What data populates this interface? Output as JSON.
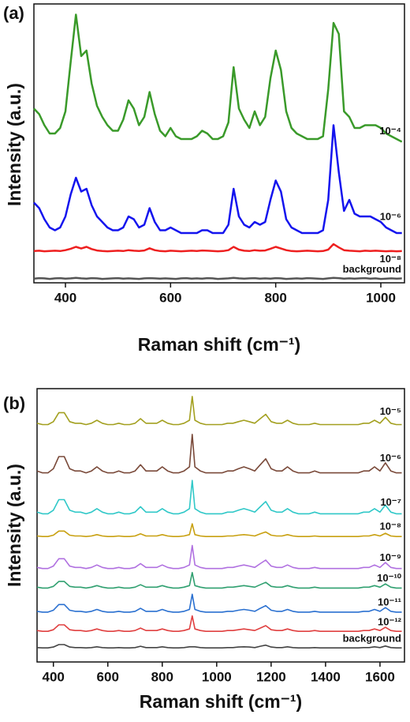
{
  "chart_data": [
    {
      "type": "line",
      "panel_label": "(a)",
      "xlabel": "Raman shift (cm⁻¹)",
      "ylabel": "Intensity (a.u.)",
      "xlim": [
        340,
        1045
      ],
      "xticks": [
        400,
        600,
        800,
        1000
      ],
      "ylim": [
        0,
        100
      ],
      "x": [
        340,
        350,
        360,
        370,
        380,
        390,
        400,
        410,
        420,
        430,
        440,
        450,
        460,
        470,
        480,
        490,
        500,
        510,
        520,
        530,
        540,
        550,
        560,
        570,
        580,
        590,
        600,
        610,
        620,
        630,
        640,
        650,
        660,
        670,
        680,
        690,
        700,
        710,
        720,
        730,
        740,
        750,
        760,
        770,
        780,
        790,
        800,
        810,
        820,
        830,
        840,
        850,
        860,
        870,
        880,
        890,
        900,
        910,
        920,
        930,
        940,
        950,
        960,
        970,
        980,
        990,
        1000,
        1010,
        1020,
        1030,
        1040
      ],
      "series": [
        {
          "name": "10⁻⁴",
          "color": "#3a9a2a",
          "values": [
            63,
            61,
            57,
            54,
            54,
            56,
            62,
            80,
            97,
            82,
            84,
            72,
            64,
            60,
            57,
            55,
            55,
            59,
            66,
            63,
            57,
            60,
            69,
            61,
            55,
            53,
            56,
            53,
            52,
            52,
            52,
            53,
            55,
            54,
            52,
            52,
            53,
            58,
            78,
            63,
            59,
            56,
            62,
            57,
            60,
            74,
            84,
            77,
            62,
            56,
            54,
            53,
            52,
            52,
            52,
            53,
            70,
            94,
            90,
            62,
            60,
            56,
            56,
            57,
            57,
            57,
            56,
            54,
            53,
            52,
            51
          ]
        },
        {
          "name": "10⁻⁶",
          "color": "#1414ee",
          "values": [
            29,
            27,
            23,
            20,
            19,
            20,
            24,
            32,
            38,
            33,
            34,
            28,
            24,
            22,
            20,
            19,
            19,
            20,
            24,
            23,
            20,
            21,
            27,
            22,
            19,
            19,
            20,
            19,
            18,
            18,
            18,
            18,
            19,
            19,
            18,
            18,
            18,
            21,
            34,
            24,
            21,
            20,
            22,
            21,
            22,
            30,
            37,
            33,
            23,
            20,
            19,
            18,
            18,
            18,
            18,
            19,
            30,
            57,
            40,
            26,
            30,
            25,
            24,
            24,
            24,
            23,
            22,
            20,
            19,
            18,
            18
          ]
        },
        {
          "name": "10⁻⁸",
          "color": "#ee2020",
          "values": [
            11.5,
            11.6,
            11.4,
            11.5,
            11.6,
            11.5,
            11.8,
            12.3,
            13,
            12.4,
            13,
            12.2,
            11.7,
            11.5,
            11.4,
            11.5,
            11.6,
            11.5,
            11.8,
            11.6,
            11.5,
            11.7,
            12.5,
            11.8,
            11.5,
            11.4,
            11.6,
            11.5,
            11.4,
            11.5,
            11.6,
            11.5,
            11.7,
            11.6,
            11.5,
            11.4,
            11.5,
            11.8,
            13,
            12,
            11.6,
            11.5,
            11.8,
            11.6,
            11.7,
            12.3,
            13,
            12.4,
            11.8,
            11.5,
            11.4,
            11.5,
            11.6,
            11.5,
            11.4,
            11.5,
            12,
            14,
            12.8,
            11.8,
            11.6,
            11.5,
            11.4,
            11.6,
            11.5,
            11.6,
            11.5,
            11.4,
            11.5,
            11.4,
            11.5
          ]
        },
        {
          "name": "background",
          "color": "#555555",
          "values": [
            1.5,
            1.7,
            1.6,
            1.4,
            1.6,
            1.7,
            1.5,
            1.6,
            1.8,
            1.6,
            1.5,
            1.7,
            1.6,
            1.4,
            1.5,
            1.6,
            1.7,
            1.5,
            1.6,
            1.5,
            1.4,
            1.6,
            1.7,
            1.6,
            1.5,
            1.6,
            1.5,
            1.4,
            1.6,
            1.7,
            1.5,
            1.6,
            1.5,
            1.7,
            1.6,
            1.4,
            1.5,
            1.6,
            1.8,
            1.6,
            1.5,
            1.6,
            1.7,
            1.5,
            1.6,
            1.5,
            1.7,
            1.6,
            1.4,
            1.5,
            1.6,
            1.5,
            1.7,
            1.6,
            1.5,
            1.4,
            1.6,
            1.8,
            1.7,
            1.5,
            1.6,
            1.5,
            1.6,
            1.7,
            1.5,
            1.6,
            1.4,
            1.5,
            1.6,
            1.5,
            1.6
          ]
        }
      ]
    },
    {
      "type": "line",
      "panel_label": "(b)",
      "xlabel": "Raman shift (cm⁻¹)",
      "ylabel": "Intensity (a.u.)",
      "xlim": [
        340,
        1690
      ],
      "xticks": [
        400,
        600,
        800,
        1000,
        1200,
        1400,
        1600
      ],
      "ylim": [
        0,
        100
      ],
      "x": [
        340,
        360,
        380,
        400,
        420,
        440,
        460,
        480,
        500,
        520,
        540,
        560,
        580,
        600,
        620,
        640,
        660,
        680,
        700,
        720,
        740,
        760,
        780,
        800,
        820,
        840,
        860,
        880,
        900,
        910,
        920,
        940,
        960,
        980,
        1000,
        1020,
        1040,
        1060,
        1080,
        1100,
        1120,
        1140,
        1160,
        1180,
        1200,
        1220,
        1240,
        1260,
        1280,
        1300,
        1320,
        1340,
        1360,
        1380,
        1400,
        1420,
        1440,
        1460,
        1480,
        1500,
        1520,
        1540,
        1560,
        1580,
        1600,
        1620,
        1640,
        1660,
        1680
      ],
      "series": [
        {
          "name": "10⁻⁵",
          "color": "#a3a020",
          "values": [
            88.1,
            87.6,
            87.6,
            88.7,
            92,
            92,
            88.7,
            88.1,
            88.1,
            87.6,
            88.1,
            89.2,
            88.1,
            87.6,
            87.6,
            88.1,
            87.6,
            87.6,
            88.1,
            89.8,
            88.1,
            88.1,
            88.1,
            89.2,
            88.1,
            87.6,
            87.6,
            88.1,
            89.2,
            98,
            89.2,
            88.1,
            87.6,
            87.6,
            87.6,
            87.6,
            88.1,
            88.1,
            88.7,
            89.2,
            88.7,
            88.1,
            89.8,
            91.4,
            88.7,
            88.1,
            88.1,
            89.2,
            88.1,
            87.6,
            87.6,
            87.6,
            88.1,
            87.6,
            87.6,
            87.6,
            87.6,
            87.6,
            87.6,
            87.6,
            87.6,
            88.1,
            88.1,
            89.2,
            88.1,
            90.3,
            88.1,
            87.6,
            87.6
          ]
        },
        {
          "name": "10⁻⁶",
          "color": "#7a4a3a",
          "values": [
            70.5,
            69.8,
            69.8,
            71.3,
            75.8,
            75.8,
            71.3,
            70.5,
            70.5,
            69.8,
            70.5,
            72,
            70.5,
            69.8,
            69.8,
            70.5,
            69.8,
            69.8,
            70.5,
            72.8,
            70.5,
            70.5,
            70.5,
            72,
            70.5,
            69.8,
            69.8,
            70.5,
            72,
            84,
            72,
            70.5,
            69.8,
            69.8,
            69.8,
            69.8,
            70.5,
            70.5,
            71.3,
            72,
            71.3,
            70.5,
            72.8,
            75,
            71.3,
            70.5,
            70.5,
            72,
            70.5,
            69.8,
            69.8,
            69.8,
            70.5,
            69.8,
            69.8,
            69.8,
            69.8,
            69.8,
            69.8,
            69.8,
            69.8,
            70.5,
            70.5,
            72,
            70.5,
            73.5,
            70.5,
            69.8,
            69.8
          ]
        },
        {
          "name": "10⁻⁷",
          "color": "#30c8c8",
          "values": [
            55.3,
            54.7,
            54.7,
            56,
            59.9,
            59.9,
            56,
            55.3,
            55.3,
            54.7,
            55.3,
            56.6,
            55.3,
            54.7,
            54.7,
            55.3,
            54.7,
            54.7,
            55.3,
            57.3,
            55.3,
            55.3,
            55.3,
            56.6,
            55.3,
            54.7,
            54.7,
            55.3,
            56.6,
            67,
            56.6,
            55.3,
            54.7,
            54.7,
            54.7,
            54.7,
            55.3,
            55.3,
            56,
            56.6,
            56,
            55.3,
            57.3,
            59.2,
            56,
            55.3,
            55.3,
            56.6,
            55.3,
            54.7,
            54.7,
            54.7,
            55.3,
            54.7,
            54.7,
            54.7,
            54.7,
            54.7,
            54.7,
            54.7,
            54.7,
            55.3,
            55.3,
            56.6,
            55.3,
            57.9,
            55.3,
            54.7,
            54.7
          ]
        },
        {
          "name": "10⁻⁸",
          "color": "#c8a010",
          "values": [
            46.5,
            46.3,
            46.3,
            46.8,
            48.3,
            48.3,
            46.8,
            46.5,
            46.5,
            46.3,
            46.5,
            47,
            46.5,
            46.3,
            46.3,
            46.5,
            46.3,
            46.3,
            46.5,
            47.3,
            46.5,
            46.5,
            46.5,
            47,
            46.5,
            46.3,
            46.3,
            46.5,
            47,
            51,
            47,
            46.5,
            46.3,
            46.3,
            46.3,
            46.3,
            46.5,
            46.5,
            46.8,
            47,
            46.8,
            46.5,
            47.3,
            48,
            46.8,
            46.5,
            46.5,
            47,
            46.5,
            46.3,
            46.3,
            46.3,
            46.5,
            46.3,
            46.3,
            46.3,
            46.3,
            46.3,
            46.3,
            46.3,
            46.3,
            46.5,
            46.5,
            47,
            46.5,
            47.5,
            46.5,
            46.3,
            46.3
          ]
        },
        {
          "name": "10⁻⁹",
          "color": "#b070e0",
          "values": [
            34.9,
            34.5,
            34.5,
            35.4,
            38.1,
            38.1,
            35.4,
            34.9,
            34.9,
            34.5,
            34.9,
            35.8,
            34.9,
            34.5,
            34.5,
            34.9,
            34.5,
            34.5,
            34.9,
            36.3,
            34.9,
            34.9,
            34.9,
            35.8,
            34.9,
            34.5,
            34.5,
            34.9,
            35.8,
            43,
            35.8,
            34.9,
            34.5,
            34.5,
            34.5,
            34.5,
            34.9,
            34.9,
            35.4,
            35.8,
            35.4,
            34.9,
            36.3,
            37.6,
            35.4,
            34.9,
            34.9,
            35.8,
            34.9,
            34.5,
            34.5,
            34.5,
            34.9,
            34.5,
            34.5,
            34.5,
            34.5,
            34.5,
            34.5,
            34.5,
            34.5,
            34.9,
            34.9,
            35.8,
            34.9,
            36.7,
            34.9,
            34.5,
            34.5
          ]
        },
        {
          "name": "10⁻¹⁰",
          "color": "#30a070",
          "values": [
            27.6,
            27.3,
            27.3,
            27.9,
            29.7,
            29.7,
            27.9,
            27.6,
            27.6,
            27.3,
            27.6,
            28.2,
            27.6,
            27.3,
            27.3,
            27.6,
            27.3,
            27.3,
            27.6,
            28.5,
            27.6,
            27.6,
            27.6,
            28.2,
            27.6,
            27.3,
            27.3,
            27.6,
            28.2,
            33,
            28.2,
            27.6,
            27.3,
            27.3,
            27.3,
            27.3,
            27.6,
            27.6,
            27.9,
            28.2,
            27.9,
            27.6,
            28.5,
            29.4,
            27.9,
            27.6,
            27.6,
            28.2,
            27.6,
            27.3,
            27.3,
            27.3,
            27.6,
            27.3,
            27.3,
            27.3,
            27.3,
            27.3,
            27.3,
            27.3,
            27.3,
            27.6,
            27.6,
            28.2,
            27.6,
            28.8,
            27.6,
            27.3,
            27.3
          ]
        },
        {
          "name": "10⁻¹¹",
          "color": "#2a70d0",
          "values": [
            18.7,
            18.4,
            18.4,
            19.1,
            21.2,
            21.2,
            19.1,
            18.7,
            18.7,
            18.4,
            18.7,
            19.4,
            18.7,
            18.4,
            18.4,
            18.7,
            18.4,
            18.4,
            18.7,
            19.8,
            18.7,
            18.7,
            18.7,
            19.4,
            18.7,
            18.4,
            18.4,
            18.7,
            19.4,
            25,
            19.4,
            18.7,
            18.4,
            18.4,
            18.4,
            18.4,
            18.7,
            18.7,
            19.1,
            19.4,
            19.1,
            18.7,
            19.8,
            20.8,
            19.1,
            18.7,
            18.7,
            19.4,
            18.7,
            18.4,
            18.4,
            18.4,
            18.7,
            18.4,
            18.4,
            18.4,
            18.4,
            18.4,
            18.4,
            18.4,
            18.4,
            18.7,
            18.7,
            19.4,
            18.7,
            20.1,
            18.7,
            18.4,
            18.4
          ]
        },
        {
          "name": "10⁻¹²",
          "color": "#e04040",
          "values": [
            11.6,
            11.3,
            11.3,
            11.9,
            13.7,
            13.7,
            11.9,
            11.6,
            11.6,
            11.3,
            11.6,
            12.2,
            11.6,
            11.3,
            11.3,
            11.6,
            11.3,
            11.3,
            11.6,
            12.5,
            11.6,
            11.6,
            11.6,
            12.2,
            11.6,
            11.3,
            11.3,
            11.6,
            12.2,
            17,
            12.2,
            11.6,
            11.3,
            11.3,
            11.3,
            11.3,
            11.6,
            11.6,
            11.9,
            12.2,
            11.9,
            11.6,
            12.5,
            13.4,
            11.9,
            11.6,
            11.6,
            12.2,
            11.6,
            11.3,
            11.3,
            11.3,
            11.6,
            11.3,
            11.3,
            11.3,
            11.3,
            11.3,
            11.3,
            11.3,
            11.3,
            11.6,
            11.6,
            12.2,
            11.6,
            12.8,
            11.6,
            11.3,
            11.3
          ]
        },
        {
          "name": "background",
          "color": "#444444",
          "values": [
            5.3,
            5.2,
            5.2,
            5.5,
            6.4,
            6.4,
            5.5,
            5.3,
            5.3,
            5.2,
            5.3,
            5.6,
            5.3,
            5.2,
            5.2,
            5.3,
            5.2,
            5.2,
            5.3,
            5.8,
            5.3,
            5.3,
            5.3,
            5.6,
            5.3,
            5.2,
            5.2,
            5.3,
            5.6,
            5.6,
            5.6,
            5.3,
            5.2,
            5.2,
            5.2,
            5.2,
            5.3,
            5.3,
            5.5,
            5.6,
            5.5,
            5.3,
            5.8,
            6.2,
            5.5,
            5.3,
            5.3,
            5.6,
            5.3,
            5.2,
            5.2,
            5.2,
            5.3,
            5.2,
            5.2,
            5.2,
            5.2,
            5.2,
            5.2,
            5.2,
            5.2,
            5.3,
            5.3,
            5.6,
            5.3,
            5.9,
            5.3,
            5.2,
            5.2
          ]
        }
      ]
    }
  ]
}
